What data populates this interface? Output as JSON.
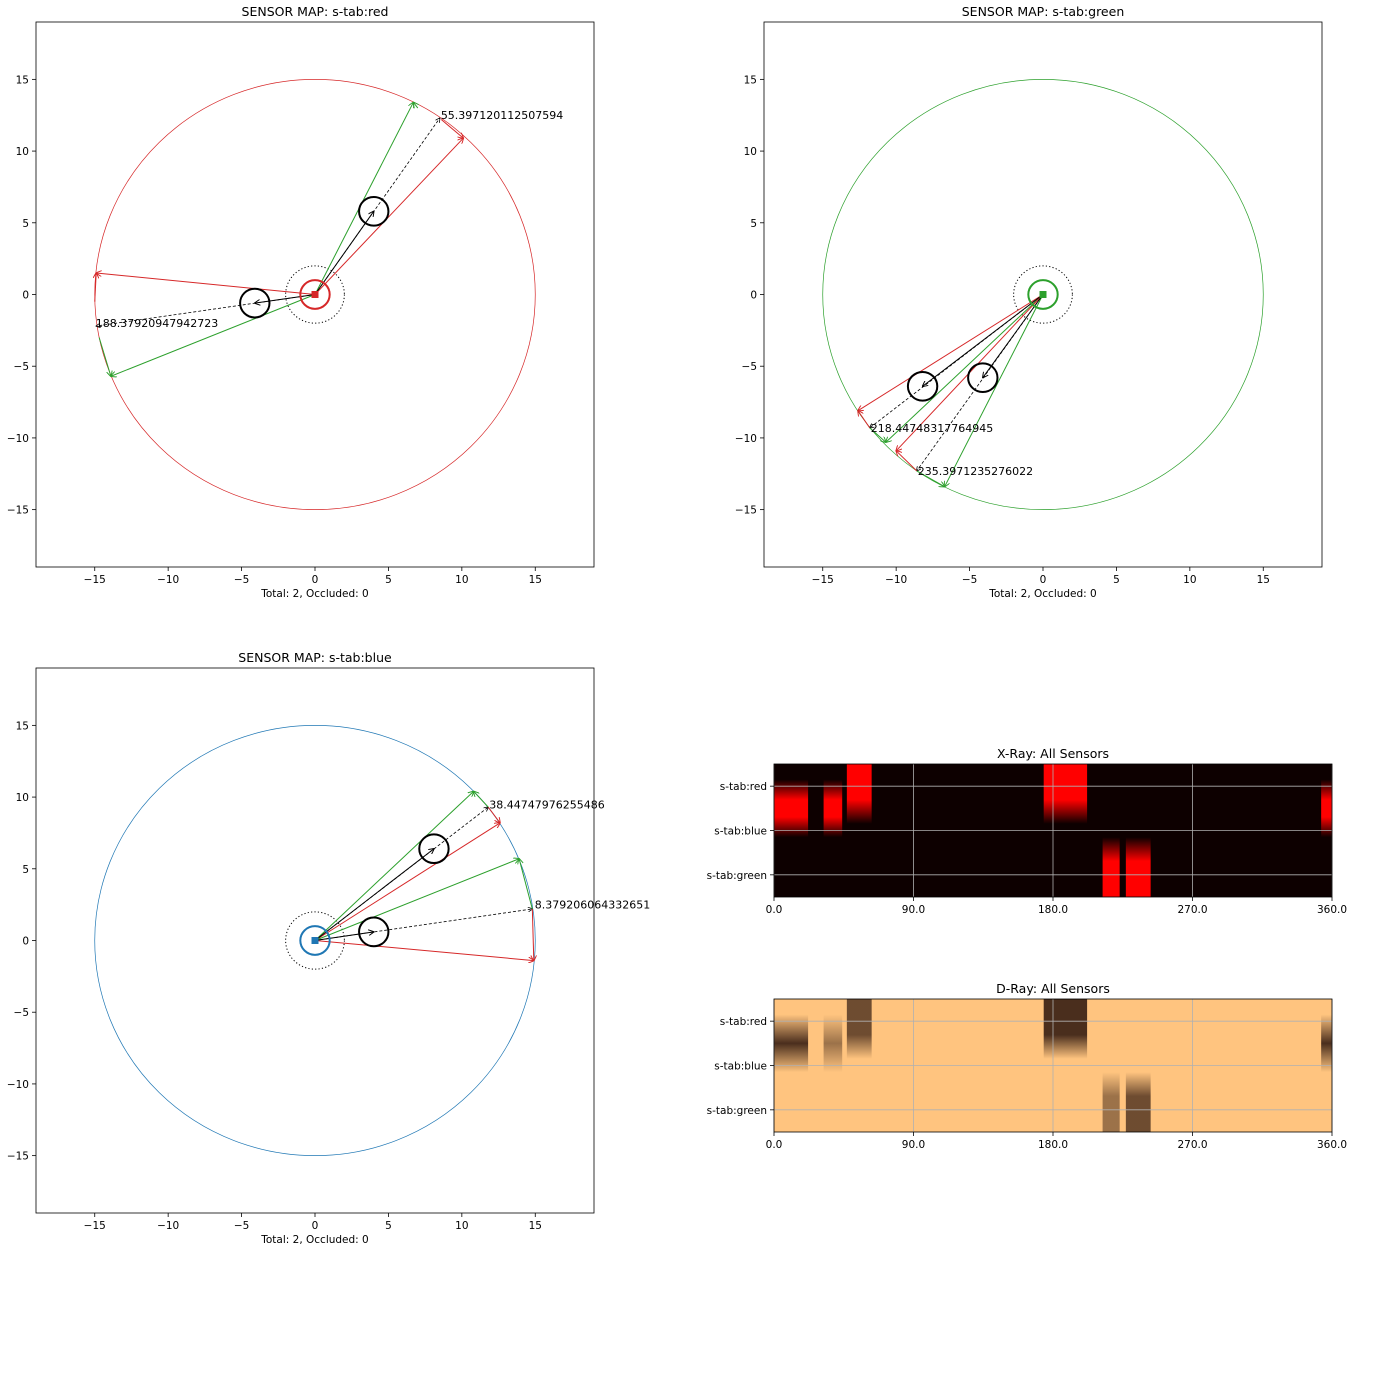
{
  "chart_data": [
    {
      "type": "scatter",
      "id": "map-red",
      "title": "SENSOR MAP: s-tab:red",
      "xlabel": "Total: 2, Occluded: 0",
      "ylabel": "",
      "xlim": [
        -19,
        19
      ],
      "ylim": [
        -19,
        19
      ],
      "xticks": [
        -15,
        -10,
        -5,
        0,
        5,
        10,
        15
      ],
      "yticks": [
        -15,
        -10,
        -5,
        0,
        5,
        10,
        15
      ],
      "xtick_labels": [
        "−15",
        "−10",
        "−5",
        "0",
        "5",
        "10",
        "15"
      ],
      "ytick_labels": [
        "−15",
        "−10",
        "−5",
        "0",
        "5",
        "10",
        "15"
      ],
      "sensor": {
        "x": 0,
        "y": 0,
        "range": 15,
        "color": "#d62728"
      },
      "targets": [
        {
          "x": 4.0,
          "y": 5.8,
          "radius": 1.0,
          "bearing_label": "55.397120112507594",
          "label_at": [
            8.5,
            12.5
          ]
        },
        {
          "x": -4.1,
          "y": -0.6,
          "radius": 1.0,
          "bearing_label": "188.37920947942723",
          "label_at": [
            -15.0,
            -2.0
          ]
        }
      ],
      "rays": [
        {
          "x1": 0,
          "y1": 0,
          "x2": 6.7,
          "y2": 13.4,
          "color": "#2ca02c"
        },
        {
          "x1": 0,
          "y1": 0,
          "x2": 10.1,
          "y2": 10.9,
          "color": "#d62728"
        },
        {
          "x1": 0,
          "y1": 0,
          "x2": -14.9,
          "y2": 1.5,
          "color": "#d62728"
        },
        {
          "x1": 0,
          "y1": 0,
          "x2": -13.9,
          "y2": -5.7,
          "color": "#2ca02c"
        }
      ],
      "target_rays": [
        {
          "x1": 0,
          "y1": 0,
          "x2": 4.0,
          "y2": 5.8
        },
        {
          "x1": 0,
          "y1": 0,
          "x2": -4.1,
          "y2": -0.6
        }
      ],
      "bearing_rays": [
        {
          "x1": 0,
          "y1": 0,
          "x2": 8.5,
          "y2": 12.3
        },
        {
          "x1": 0,
          "y1": 0,
          "x2": -14.9,
          "y2": -2.2
        }
      ],
      "arc_segments": [
        {
          "x1": 7.0,
          "y1": 13.0,
          "x2": 6.7,
          "y2": 13.4,
          "color": "#2ca02c"
        },
        {
          "x1": 8.6,
          "y1": 12.2,
          "x2": 10.1,
          "y2": 10.9,
          "color": "#d62728"
        },
        {
          "x1": -15.0,
          "y1": -0.5,
          "x2": -14.9,
          "y2": 1.5,
          "color": "#d62728"
        },
        {
          "x1": -14.7,
          "y1": -3.0,
          "x2": -13.9,
          "y2": -5.7,
          "color": "#2ca02c"
        }
      ]
    },
    {
      "type": "scatter",
      "id": "map-green",
      "title": "SENSOR MAP: s-tab:green",
      "xlabel": "Total: 2, Occluded: 0",
      "ylabel": "",
      "xlim": [
        -19,
        19
      ],
      "ylim": [
        -19,
        19
      ],
      "xticks": [
        -15,
        -10,
        -5,
        0,
        5,
        10,
        15
      ],
      "yticks": [
        -15,
        -10,
        -5,
        0,
        5,
        10,
        15
      ],
      "xtick_labels": [
        "−15",
        "−10",
        "−5",
        "0",
        "5",
        "10",
        "15"
      ],
      "ytick_labels": [
        "−15",
        "−10",
        "−5",
        "0",
        "5",
        "10",
        "15"
      ],
      "sensor": {
        "x": 0,
        "y": 0,
        "range": 15,
        "color": "#2ca02c"
      },
      "targets": [
        {
          "x": -8.2,
          "y": -6.4,
          "radius": 1.0,
          "bearing_label": "218.44748317764945",
          "label_at": [
            -11.8,
            -9.3
          ]
        },
        {
          "x": -4.1,
          "y": -5.8,
          "radius": 1.0,
          "bearing_label": "235.3971235276022",
          "label_at": [
            -8.6,
            -12.3
          ]
        }
      ],
      "rays": [
        {
          "x1": 0,
          "y1": 0,
          "x2": -12.6,
          "y2": -8.1,
          "color": "#d62728"
        },
        {
          "x1": 0,
          "y1": 0,
          "x2": -10.7,
          "y2": -10.3,
          "color": "#2ca02c"
        },
        {
          "x1": 0,
          "y1": 0,
          "x2": -10.0,
          "y2": -10.9,
          "color": "#d62728"
        },
        {
          "x1": 0,
          "y1": 0,
          "x2": -6.7,
          "y2": -13.4,
          "color": "#2ca02c"
        }
      ],
      "target_rays": [
        {
          "x1": 0,
          "y1": 0,
          "x2": -8.2,
          "y2": -6.4
        },
        {
          "x1": 0,
          "y1": 0,
          "x2": -4.1,
          "y2": -5.8
        }
      ],
      "bearing_rays": [
        {
          "x1": 0,
          "y1": 0,
          "x2": -11.8,
          "y2": -9.3
        },
        {
          "x1": 0,
          "y1": 0,
          "x2": -8.6,
          "y2": -12.3
        }
      ],
      "arc_segments": [
        {
          "x1": -11.8,
          "y1": -9.3,
          "x2": -12.6,
          "y2": -8.1,
          "color": "#d62728"
        },
        {
          "x1": -11.8,
          "y1": -9.3,
          "x2": -10.7,
          "y2": -10.3,
          "color": "#2ca02c"
        },
        {
          "x1": -8.6,
          "y1": -12.3,
          "x2": -10.0,
          "y2": -10.9,
          "color": "#d62728"
        },
        {
          "x1": -8.6,
          "y1": -12.3,
          "x2": -6.7,
          "y2": -13.4,
          "color": "#2ca02c"
        }
      ]
    },
    {
      "type": "scatter",
      "id": "map-blue",
      "title": "SENSOR MAP: s-tab:blue",
      "xlabel": "Total: 2, Occluded: 0",
      "ylabel": "",
      "xlim": [
        -19,
        19
      ],
      "ylim": [
        -19,
        19
      ],
      "xticks": [
        -15,
        -10,
        -5,
        0,
        5,
        10,
        15
      ],
      "yticks": [
        -15,
        -10,
        -5,
        0,
        5,
        10,
        15
      ],
      "xtick_labels": [
        "−15",
        "−10",
        "−5",
        "0",
        "5",
        "10",
        "15"
      ],
      "ytick_labels": [
        "−15",
        "−10",
        "−5",
        "0",
        "5",
        "10",
        "15"
      ],
      "sensor": {
        "x": 0,
        "y": 0,
        "range": 15,
        "color": "#1f77b4"
      },
      "targets": [
        {
          "x": 8.1,
          "y": 6.4,
          "radius": 1.0,
          "bearing_label": "38.44747976255486",
          "label_at": [
            11.8,
            9.5
          ]
        },
        {
          "x": 4.0,
          "y": 0.6,
          "radius": 1.0,
          "bearing_label": "8.379206064332651",
          "label_at": [
            14.9,
            2.5
          ]
        }
      ],
      "rays": [
        {
          "x1": 0,
          "y1": 0,
          "x2": 10.8,
          "y2": 10.4,
          "color": "#2ca02c"
        },
        {
          "x1": 0,
          "y1": 0,
          "x2": 12.6,
          "y2": 8.2,
          "color": "#d62728"
        },
        {
          "x1": 0,
          "y1": 0,
          "x2": 13.9,
          "y2": 5.7,
          "color": "#2ca02c"
        },
        {
          "x1": 0,
          "y1": 0,
          "x2": 14.9,
          "y2": -1.4,
          "color": "#d62728"
        }
      ],
      "target_rays": [
        {
          "x1": 0,
          "y1": 0,
          "x2": 8.1,
          "y2": 6.4
        },
        {
          "x1": 0,
          "y1": 0,
          "x2": 4.0,
          "y2": 0.6
        }
      ],
      "bearing_rays": [
        {
          "x1": 0,
          "y1": 0,
          "x2": 11.8,
          "y2": 9.3
        },
        {
          "x1": 0,
          "y1": 0,
          "x2": 14.8,
          "y2": 2.2
        }
      ],
      "arc_segments": [
        {
          "x1": 11.8,
          "y1": 9.3,
          "x2": 10.8,
          "y2": 10.4,
          "color": "#2ca02c"
        },
        {
          "x1": 11.8,
          "y1": 9.3,
          "x2": 12.6,
          "y2": 8.2,
          "color": "#d62728"
        },
        {
          "x1": 14.8,
          "y1": 2.2,
          "x2": 13.9,
          "y2": 5.7,
          "color": "#2ca02c"
        },
        {
          "x1": 14.8,
          "y1": 2.2,
          "x2": 14.9,
          "y2": -1.4,
          "color": "#d62728"
        }
      ]
    },
    {
      "type": "heatmap",
      "id": "xray",
      "title": "X-Ray: All Sensors",
      "xlim": [
        0,
        360
      ],
      "xticks": [
        0,
        90,
        180,
        270,
        360
      ],
      "xtick_labels": [
        "0.0",
        "90.0",
        "180.0",
        "270.0",
        "360.0"
      ],
      "rows": [
        "s-tab:red",
        "s-tab:blue",
        "s-tab:green"
      ],
      "colormap": "hot",
      "background": "#0d0000",
      "band_color": "#ff0000",
      "bands": [
        {
          "row": "s-tab:red",
          "start": 47,
          "end": 63,
          "strength": 1.0
        },
        {
          "row": "s-tab:red",
          "start": 174,
          "end": 202,
          "strength": 1.0
        },
        {
          "row": "s-tab:blue",
          "start": 0,
          "end": 22,
          "strength": 1.0
        },
        {
          "row": "s-tab:blue",
          "start": 32,
          "end": 44,
          "strength": 1.0
        },
        {
          "row": "s-tab:blue",
          "start": 353,
          "end": 360,
          "strength": 1.0
        },
        {
          "row": "s-tab:green",
          "start": 212,
          "end": 223,
          "strength": 1.0
        },
        {
          "row": "s-tab:green",
          "start": 227,
          "end": 243,
          "strength": 1.0
        }
      ]
    },
    {
      "type": "heatmap",
      "id": "dray",
      "title": "D-Ray: All Sensors",
      "xlim": [
        0,
        360
      ],
      "xticks": [
        0,
        90,
        180,
        270,
        360
      ],
      "xtick_labels": [
        "0.0",
        "90.0",
        "180.0",
        "270.0",
        "360.0"
      ],
      "rows": [
        "s-tab:red",
        "s-tab:blue",
        "s-tab:green"
      ],
      "colormap": "copper",
      "background": "#ffc47f",
      "band_color": "#4a2e1d",
      "bands": [
        {
          "row": "s-tab:red",
          "start": 47,
          "end": 63,
          "strength": 0.8
        },
        {
          "row": "s-tab:red",
          "start": 174,
          "end": 202,
          "strength": 1.0
        },
        {
          "row": "s-tab:blue",
          "start": 0,
          "end": 22,
          "strength": 1.0
        },
        {
          "row": "s-tab:blue",
          "start": 32,
          "end": 44,
          "strength": 0.55
        },
        {
          "row": "s-tab:blue",
          "start": 353,
          "end": 360,
          "strength": 1.0
        },
        {
          "row": "s-tab:green",
          "start": 212,
          "end": 223,
          "strength": 0.55
        },
        {
          "row": "s-tab:green",
          "start": 227,
          "end": 243,
          "strength": 0.8
        }
      ]
    }
  ]
}
